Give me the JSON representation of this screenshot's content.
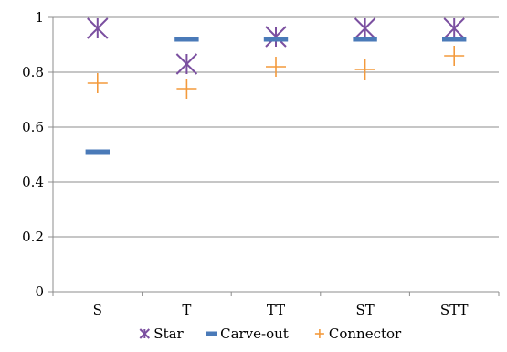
{
  "chart_data": {
    "type": "scatter",
    "title": "",
    "xlabel": "",
    "ylabel": "",
    "categories": [
      "S",
      "T",
      "TT",
      "ST",
      "STT"
    ],
    "ylim": [
      0,
      1
    ],
    "yticks": [
      0,
      0.2,
      0.4,
      0.6,
      0.8,
      1
    ],
    "ytick_labels": [
      "0",
      "0.2",
      "0.4",
      "0.6",
      "0.8",
      "1"
    ],
    "grid": true,
    "legend_position": "bottom",
    "series": [
      {
        "name": "Star",
        "marker": "x-star",
        "color": "#7b4fa0",
        "values": [
          0.96,
          0.83,
          0.93,
          0.96,
          0.96
        ]
      },
      {
        "name": "Carve-out",
        "marker": "dash",
        "color": "#4a7ab8",
        "values": [
          0.51,
          0.92,
          0.92,
          0.92,
          0.92
        ]
      },
      {
        "name": "Connector",
        "marker": "plus",
        "color": "#f39a3c",
        "values": [
          0.76,
          0.74,
          0.82,
          0.81,
          0.86
        ]
      }
    ]
  }
}
